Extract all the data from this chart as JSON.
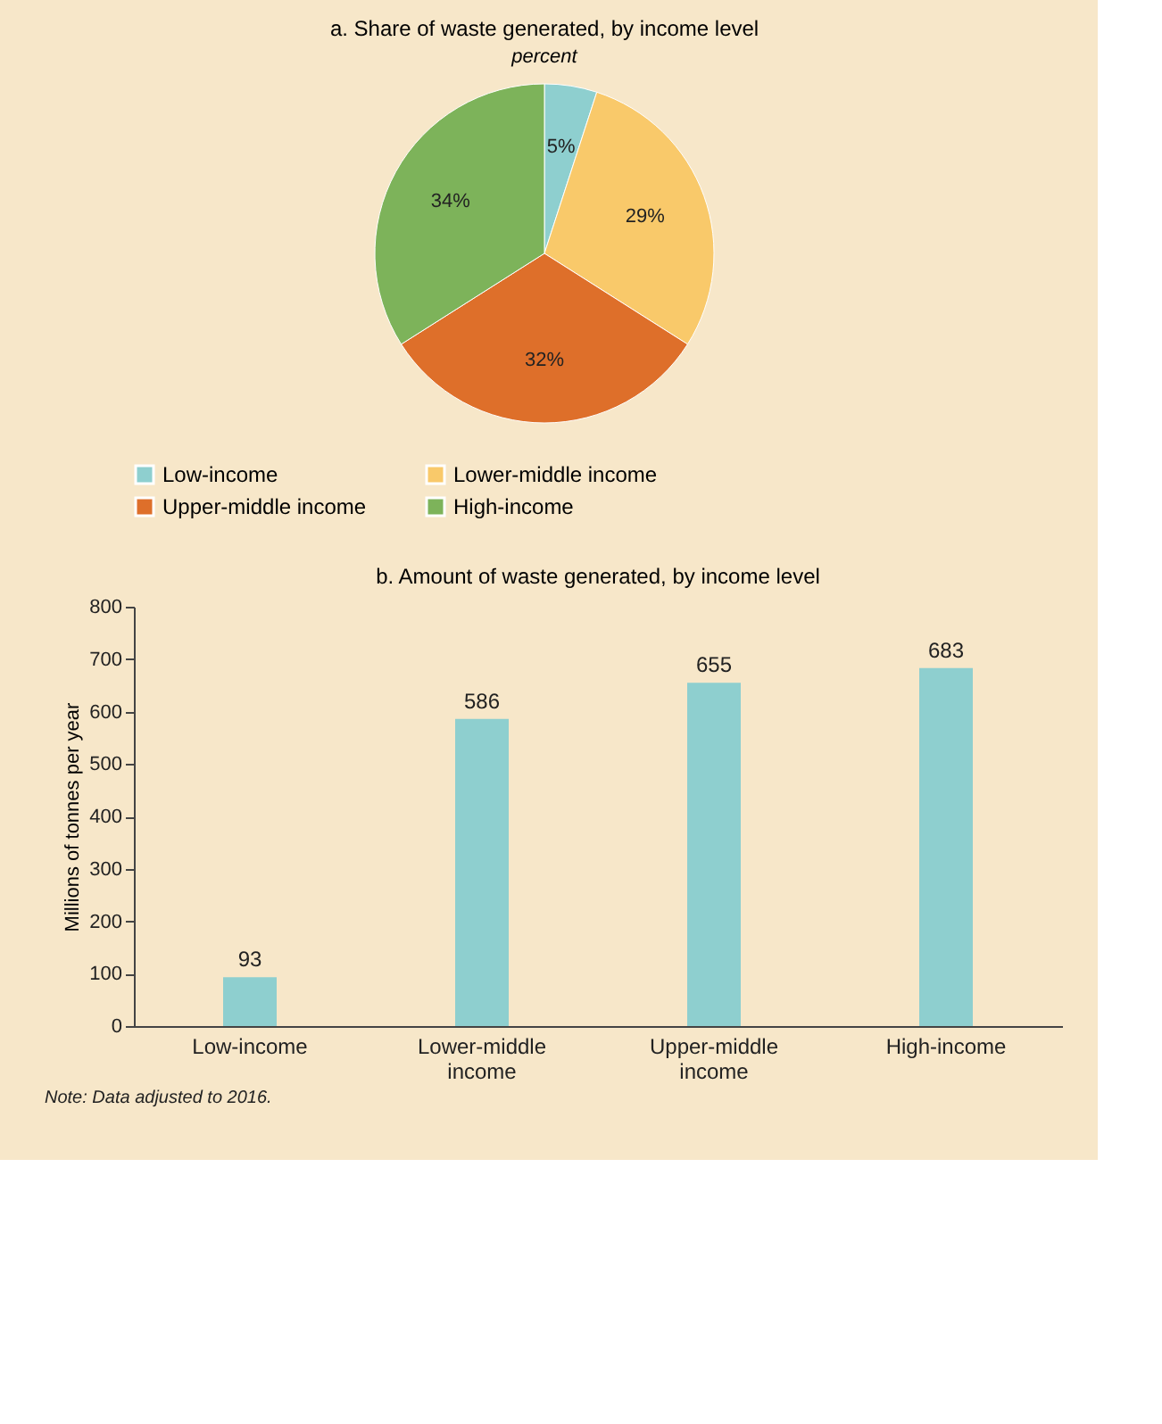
{
  "chart_data": [
    {
      "type": "pie",
      "title": "a. Share of waste generated, by income level",
      "subtitle": "percent",
      "categories": [
        "Low-income",
        "Lower-middle income",
        "Upper-middle income",
        "High-income"
      ],
      "values": [
        5,
        29,
        32,
        34
      ],
      "colors": [
        "#8ecfcf",
        "#f9c96a",
        "#de6f2a",
        "#7db35a"
      ],
      "value_labels": [
        "5%",
        "29%",
        "32%",
        "34%"
      ],
      "legend": "bottom"
    },
    {
      "type": "bar",
      "title": "b. Amount of waste generated, by income level",
      "ylabel": "Millions of tonnes per year",
      "categories": [
        "Low-income",
        "Lower-middle income",
        "Upper-middle income",
        "High-income"
      ],
      "values": [
        93,
        586,
        655,
        683
      ],
      "color": "#8ecfcf",
      "ylim": [
        0,
        800
      ],
      "yticks": [
        0,
        100,
        200,
        300,
        400,
        500,
        600,
        700,
        800
      ],
      "data_labels": true,
      "grid": false,
      "annotations": [
        "Note: Data adjusted to 2016."
      ]
    }
  ]
}
